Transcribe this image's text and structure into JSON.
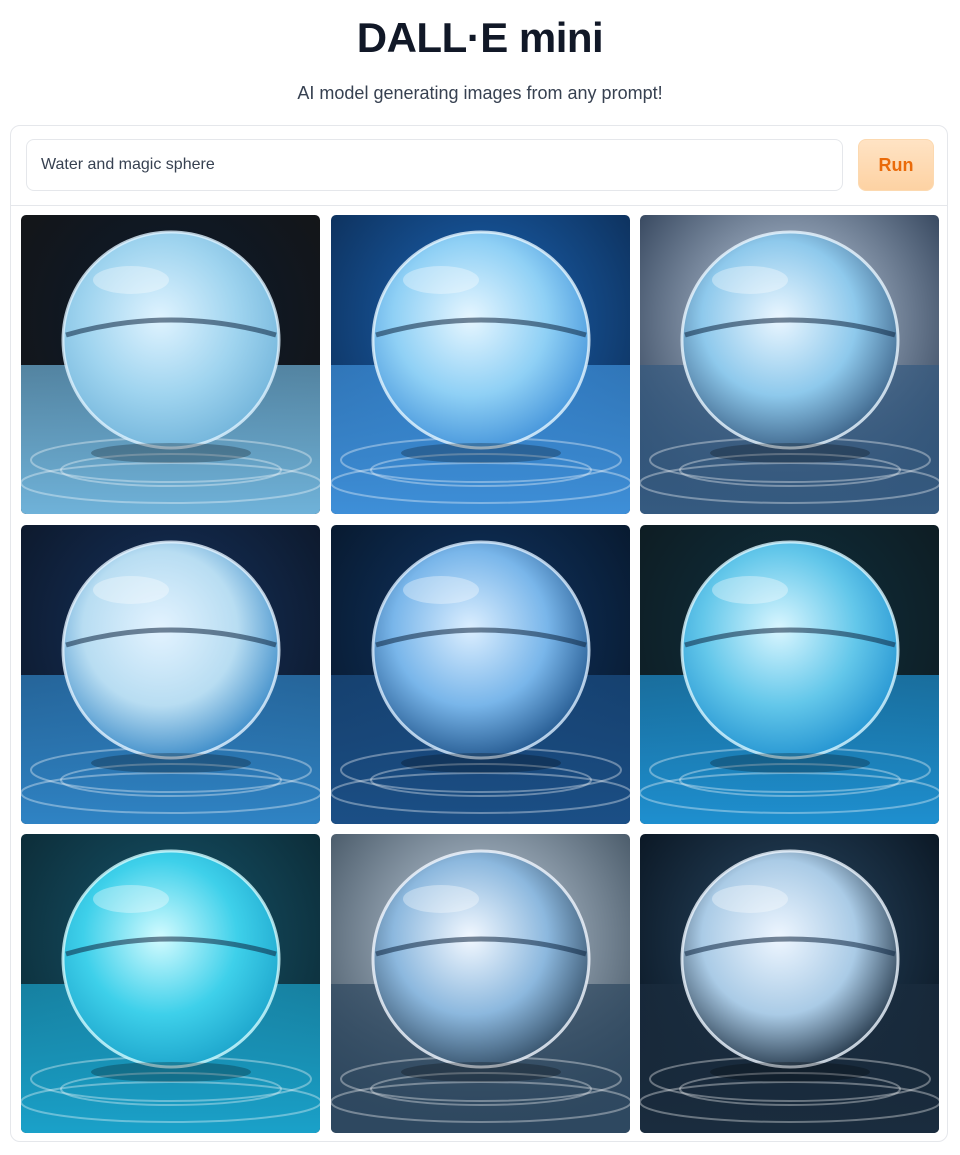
{
  "header": {
    "title": "DALL·E mini",
    "subtitle": "AI model generating images from any prompt!"
  },
  "prompt": {
    "value": "Water and magic sphere",
    "placeholder": ""
  },
  "run_button": {
    "label": "Run"
  },
  "gallery": {
    "images": [
      {
        "subject": "glass sphere on rippling water",
        "bg": "#151515",
        "glow": "#0b1a2e",
        "water": "#6fb2d9",
        "fill": "#9fd4ef",
        "rim": "#dff3ff"
      },
      {
        "subject": "glowing blue sphere on water",
        "bg": "#0c2b52",
        "glow": "#1b66b8",
        "water": "#3e8fd8",
        "fill": "#8fd0f5",
        "rim": "#e6f6ff"
      },
      {
        "subject": "clear sphere on dark water",
        "bg": "#24354d",
        "glow": "#c9d8ea",
        "water": "#355a80",
        "fill": "#8ec9ec",
        "rim": "#eaf6ff"
      },
      {
        "subject": "sphere with splash inside",
        "bg": "#0c1626",
        "glow": "#15325e",
        "water": "#2f83c4",
        "fill": "#b8ddf2",
        "rim": "#e3f3ff"
      },
      {
        "subject": "crystal ball on pedestal",
        "bg": "#071628",
        "glow": "#103666",
        "water": "#1b4f86",
        "fill": "#79b6ea",
        "rim": "#dbeeff"
      },
      {
        "subject": "sphere floating on water",
        "bg": "#0d1a1f",
        "glow": "#10303f",
        "water": "#1e8fcf",
        "fill": "#63c7ea",
        "rim": "#d9f6ff"
      },
      {
        "subject": "turquoise water sphere",
        "bg": "#0b2731",
        "glow": "#16566d",
        "water": "#1aa1c9",
        "fill": "#3ed0ea",
        "rim": "#d2fbff"
      },
      {
        "subject": "sphere on blurred background",
        "bg": "#3a4b5a",
        "glow": "#c8d6e4",
        "water": "#2e4860",
        "fill": "#8cb8de",
        "rim": "#f2f8ff"
      },
      {
        "subject": "luminous sphere in dark",
        "bg": "#07111c",
        "glow": "#2a4a66",
        "water": "#1a2c3e",
        "fill": "#aacbe6",
        "rim": "#eef6ff"
      }
    ]
  }
}
